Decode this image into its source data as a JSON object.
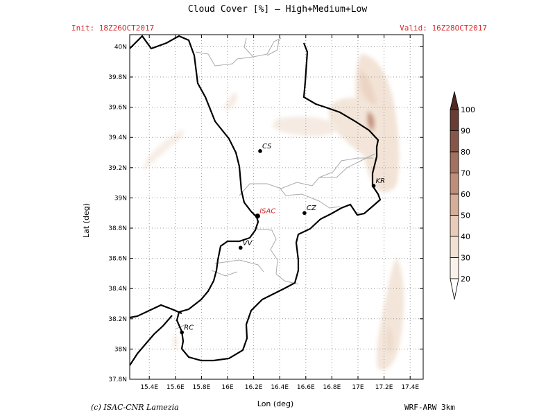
{
  "header": {
    "title": "Cloud Cover [%] — High+Medium+Low",
    "init": "Init: 18Z26OCT2017",
    "valid": "Valid: 16Z28OCT2017"
  },
  "axes": {
    "xlabel": "Lon (deg)",
    "ylabel": "Lat (deg)",
    "xticks": [
      "15.4E",
      "15.6E",
      "15.8E",
      "16E",
      "16.2E",
      "16.4E",
      "16.6E",
      "16.8E",
      "17E",
      "17.2E",
      "17.4E"
    ],
    "yticks": [
      "37.8N",
      "38N",
      "38.2N",
      "38.4N",
      "38.6N",
      "38.8N",
      "39N",
      "39.2N",
      "39.4N",
      "39.6N",
      "39.8N",
      "40N"
    ]
  },
  "cities": [
    {
      "name": "CS",
      "lon": 16.25,
      "lat": 39.31,
      "highlight": false
    },
    {
      "name": "KR",
      "lon": 17.12,
      "lat": 39.08,
      "highlight": false
    },
    {
      "name": "ISAC",
      "lon": 16.23,
      "lat": 38.88,
      "highlight": true
    },
    {
      "name": "CZ",
      "lon": 16.59,
      "lat": 38.9,
      "highlight": false
    },
    {
      "name": "VV",
      "lon": 16.1,
      "lat": 38.67,
      "highlight": false
    },
    {
      "name": "RC",
      "lon": 15.65,
      "lat": 38.11,
      "highlight": false
    }
  ],
  "colorbar": {
    "levels": [
      "20",
      "30",
      "40",
      "50",
      "60",
      "70",
      "80",
      "90",
      "100"
    ],
    "colors": [
      "#ffffff",
      "#faf2ea",
      "#f2e0d3",
      "#e8cbb9",
      "#d6ad98",
      "#be8e7a",
      "#a2715f",
      "#855649",
      "#683d33",
      "#4e2a22"
    ]
  },
  "footer": {
    "left": "(c) ISAC-CNR Lamezia",
    "right": "WRF-ARW 3km"
  }
}
